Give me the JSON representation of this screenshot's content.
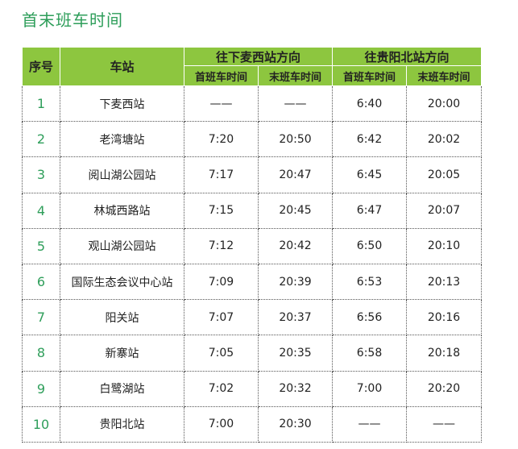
{
  "title": "首末班车时间",
  "headers": {
    "index": "序号",
    "station": "车站",
    "direction_a": "往下麦西站方向",
    "direction_b": "往贵阳北站方向",
    "first": "首班车时间",
    "last": "末班车时间"
  },
  "rows": [
    {
      "index": "1",
      "station": "下麦西站",
      "a_first": "——",
      "a_last": "——",
      "b_first": "6:40",
      "b_last": "20:00"
    },
    {
      "index": "2",
      "station": "老湾塘站",
      "a_first": "7:20",
      "a_last": "20:50",
      "b_first": "6:42",
      "b_last": "20:02"
    },
    {
      "index": "3",
      "station": "阅山湖公园站",
      "a_first": "7:17",
      "a_last": "20:47",
      "b_first": "6:45",
      "b_last": "20:05"
    },
    {
      "index": "4",
      "station": "林城西路站",
      "a_first": "7:15",
      "a_last": "20:45",
      "b_first": "6:47",
      "b_last": "20:07"
    },
    {
      "index": "5",
      "station": "观山湖公园站",
      "a_first": "7:12",
      "a_last": "20:42",
      "b_first": "6:50",
      "b_last": "20:10"
    },
    {
      "index": "6",
      "station": "国际生态会议中心站",
      "a_first": "7:09",
      "a_last": "20:39",
      "b_first": "6:53",
      "b_last": "20:13"
    },
    {
      "index": "7",
      "station": "阳关站",
      "a_first": "7:07",
      "a_last": "20:37",
      "b_first": "6:56",
      "b_last": "20:16"
    },
    {
      "index": "8",
      "station": "新寨站",
      "a_first": "7:05",
      "a_last": "20:35",
      "b_first": "6:58",
      "b_last": "20:18"
    },
    {
      "index": "9",
      "station": "白鹭湖站",
      "a_first": "7:02",
      "a_last": "20:32",
      "b_first": "7:00",
      "b_last": "20:20"
    },
    {
      "index": "10",
      "station": "贵阳北站",
      "a_first": "7:00",
      "a_last": "20:30",
      "b_first": "——",
      "b_last": "——"
    }
  ],
  "colors": {
    "header_bg": "#8dc63f",
    "accent_green": "#2e9e5a"
  }
}
